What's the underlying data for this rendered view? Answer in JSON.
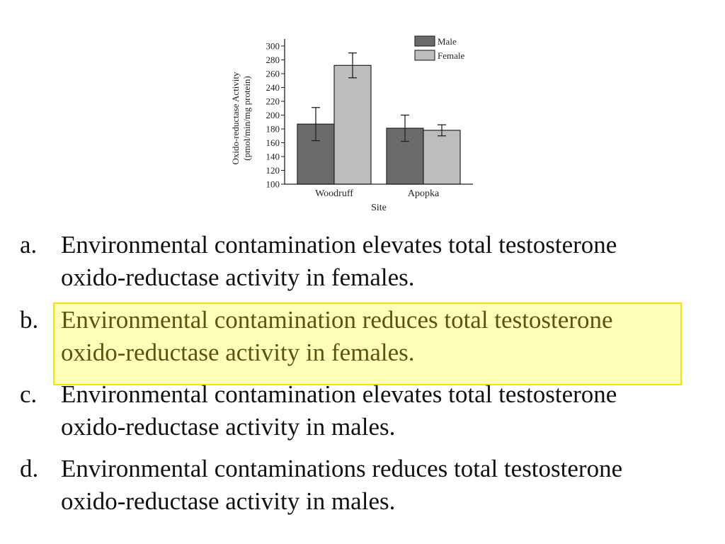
{
  "chart_data": {
    "type": "bar",
    "categories": [
      "Woodruff",
      "Apopka"
    ],
    "series": [
      {
        "name": "Male",
        "values": [
          187,
          181
        ],
        "error": [
          24,
          19
        ],
        "color": "#6b6b6b"
      },
      {
        "name": "Female",
        "values": [
          272,
          178
        ],
        "error": [
          18,
          8
        ],
        "color": "#bdbdbd"
      }
    ],
    "title": "",
    "xlabel": "Site",
    "ylabel": [
      "Oxido-reductase Activity",
      "(pmol/min/mg protein)"
    ],
    "ylim": [
      100,
      300
    ],
    "yticks": [
      100,
      120,
      140,
      160,
      180,
      200,
      220,
      240,
      260,
      280,
      300
    ],
    "legend": "top-right",
    "grid": false
  },
  "options": [
    {
      "letter": "a.",
      "lines": [
        "Environmental contamination elevates total testosterone",
        "oxido-reductase activity in females."
      ]
    },
    {
      "letter": "b.",
      "lines": [
        "Environmental contamination reduces total testosterone",
        "oxido-reductase activity in females."
      ],
      "highlighted": true
    },
    {
      "letter": "c.",
      "lines": [
        "Environmental contamination elevates total testosterone",
        "oxido-reductase activity in males."
      ]
    },
    {
      "letter": "d.",
      "lines": [
        "Environmental contaminations reduces total testosterone",
        "oxido-reductase activity in males."
      ]
    }
  ],
  "colors": {
    "highlight_fill": "#ffff80",
    "highlight_border": "#f2e600",
    "highlight_text": "#5a5410"
  }
}
